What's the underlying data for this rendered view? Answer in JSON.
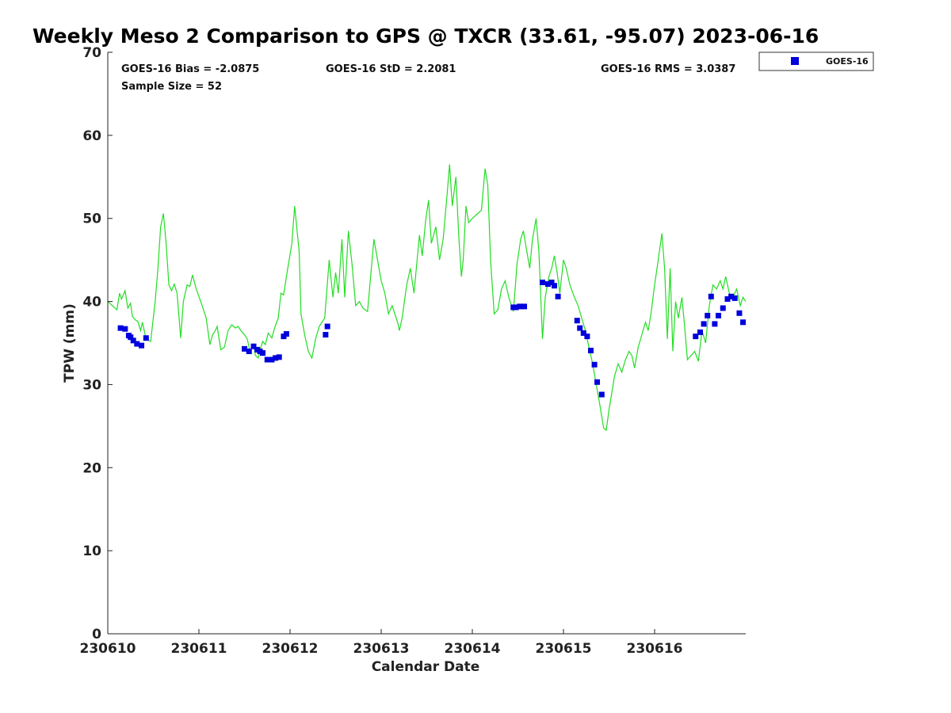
{
  "chart_data": {
    "type": "line",
    "title": "Weekly Meso 2 Comparison to GPS @ TXCR (33.61, -95.07) 2023-06-16",
    "xlabel": "Calendar Date",
    "ylabel": "TPW (mm)",
    "xlim": [
      0,
      7
    ],
    "ylim": [
      0,
      70
    ],
    "yticks": [
      0,
      10,
      20,
      30,
      40,
      50,
      60,
      70
    ],
    "xticks": [
      {
        "value": 0,
        "label": "230610"
      },
      {
        "value": 1,
        "label": "230611"
      },
      {
        "value": 2,
        "label": "230612"
      },
      {
        "value": 3,
        "label": "230613"
      },
      {
        "value": 4,
        "label": "230614"
      },
      {
        "value": 5,
        "label": "230615"
      },
      {
        "value": 6,
        "label": "230616"
      }
    ],
    "stats": {
      "bias": "GOES-16 Bias = -2.0875",
      "std": "GOES-16 StD = 2.2081",
      "rms": "GOES-16 RMS = 3.0387",
      "sample": "Sample Size = 52"
    },
    "legend": {
      "position": "outside-top-right",
      "entries": [
        "GOES-16"
      ]
    },
    "colors": {
      "gps_line": "#22dd22",
      "goes_marker": "#0000dd"
    },
    "series": [
      {
        "kind": "line",
        "points": [
          [
            0.0,
            40.0
          ],
          [
            0.05,
            39.5
          ],
          [
            0.1,
            39.0
          ],
          [
            0.13,
            41.0
          ],
          [
            0.15,
            40.3
          ],
          [
            0.19,
            41.3
          ],
          [
            0.22,
            39.2
          ],
          [
            0.25,
            39.8
          ],
          [
            0.27,
            38.2
          ],
          [
            0.3,
            37.8
          ],
          [
            0.33,
            37.6
          ],
          [
            0.36,
            36.5
          ],
          [
            0.38,
            37.5
          ],
          [
            0.42,
            35.5
          ],
          [
            0.47,
            35.2
          ],
          [
            0.52,
            40.0
          ],
          [
            0.55,
            44.0
          ],
          [
            0.58,
            49.0
          ],
          [
            0.61,
            50.6
          ],
          [
            0.64,
            47.0
          ],
          [
            0.67,
            42.0
          ],
          [
            0.7,
            41.3
          ],
          [
            0.73,
            42.1
          ],
          [
            0.76,
            41.0
          ],
          [
            0.8,
            35.6
          ],
          [
            0.83,
            40.0
          ],
          [
            0.87,
            42.0
          ],
          [
            0.9,
            41.8
          ],
          [
            0.93,
            43.2
          ],
          [
            0.97,
            41.5
          ],
          [
            1.02,
            40.0
          ],
          [
            1.08,
            38.0
          ],
          [
            1.12,
            34.8
          ],
          [
            1.15,
            36.0
          ],
          [
            1.18,
            36.5
          ],
          [
            1.2,
            37.0
          ],
          [
            1.24,
            34.2
          ],
          [
            1.28,
            34.5
          ],
          [
            1.32,
            36.5
          ],
          [
            1.36,
            37.2
          ],
          [
            1.4,
            36.8
          ],
          [
            1.43,
            37.0
          ],
          [
            1.46,
            36.5
          ],
          [
            1.5,
            36.0
          ],
          [
            1.53,
            35.5
          ],
          [
            1.56,
            34.0
          ],
          [
            1.6,
            34.8
          ],
          [
            1.62,
            33.5
          ],
          [
            1.65,
            33.2
          ],
          [
            1.68,
            34.5
          ],
          [
            1.7,
            35.2
          ],
          [
            1.73,
            34.8
          ],
          [
            1.76,
            36.2
          ],
          [
            1.8,
            35.6
          ],
          [
            1.83,
            36.8
          ],
          [
            1.87,
            38.0
          ],
          [
            1.9,
            41.0
          ],
          [
            1.93,
            40.8
          ],
          [
            1.96,
            43.0
          ],
          [
            1.99,
            45.0
          ],
          [
            2.02,
            47.0
          ],
          [
            2.05,
            51.5
          ],
          [
            2.1,
            46.0
          ],
          [
            2.12,
            38.5
          ],
          [
            2.16,
            36.0
          ],
          [
            2.2,
            34.0
          ],
          [
            2.24,
            33.2
          ],
          [
            2.28,
            35.5
          ],
          [
            2.32,
            37.0
          ],
          [
            2.38,
            38.0
          ],
          [
            2.43,
            45.0
          ],
          [
            2.47,
            40.5
          ],
          [
            2.5,
            43.5
          ],
          [
            2.53,
            41.0
          ],
          [
            2.57,
            47.5
          ],
          [
            2.6,
            40.5
          ],
          [
            2.64,
            48.5
          ],
          [
            2.68,
            44.5
          ],
          [
            2.72,
            39.5
          ],
          [
            2.76,
            40.0
          ],
          [
            2.8,
            39.2
          ],
          [
            2.85,
            38.8
          ],
          [
            2.88,
            42.5
          ],
          [
            2.92,
            47.5
          ],
          [
            2.96,
            45.0
          ],
          [
            3.0,
            42.5
          ],
          [
            3.04,
            41.0
          ],
          [
            3.08,
            38.5
          ],
          [
            3.12,
            39.5
          ],
          [
            3.18,
            37.5
          ],
          [
            3.2,
            36.5
          ],
          [
            3.23,
            38.0
          ],
          [
            3.28,
            42.0
          ],
          [
            3.32,
            44.0
          ],
          [
            3.36,
            41.0
          ],
          [
            3.42,
            48.0
          ],
          [
            3.45,
            45.5
          ],
          [
            3.49,
            50.0
          ],
          [
            3.52,
            52.2
          ],
          [
            3.55,
            47.0
          ],
          [
            3.6,
            49.0
          ],
          [
            3.64,
            45.0
          ],
          [
            3.68,
            47.5
          ],
          [
            3.72,
            52.5
          ],
          [
            3.75,
            56.5
          ],
          [
            3.78,
            51.5
          ],
          [
            3.82,
            55.0
          ],
          [
            3.85,
            48.0
          ],
          [
            3.88,
            43.0
          ],
          [
            3.9,
            45.0
          ],
          [
            3.93,
            51.5
          ],
          [
            3.96,
            49.5
          ],
          [
            4.0,
            50.0
          ],
          [
            4.05,
            50.5
          ],
          [
            4.1,
            51.0
          ],
          [
            4.14,
            56.0
          ],
          [
            4.17,
            54.0
          ],
          [
            4.2,
            45.0
          ],
          [
            4.24,
            38.5
          ],
          [
            4.28,
            39.0
          ],
          [
            4.32,
            41.5
          ],
          [
            4.36,
            42.5
          ],
          [
            4.4,
            40.5
          ],
          [
            4.45,
            38.8
          ],
          [
            4.49,
            44.5
          ],
          [
            4.53,
            47.5
          ],
          [
            4.56,
            48.5
          ],
          [
            4.59,
            46.5
          ],
          [
            4.63,
            44.0
          ],
          [
            4.66,
            47.5
          ],
          [
            4.7,
            50.0
          ],
          [
            4.73,
            46.0
          ],
          [
            4.77,
            35.5
          ],
          [
            4.8,
            40.5
          ],
          [
            4.84,
            43.0
          ],
          [
            4.87,
            44.0
          ],
          [
            4.9,
            45.5
          ],
          [
            4.93,
            43.5
          ],
          [
            4.96,
            41.0
          ],
          [
            5.0,
            45.0
          ],
          [
            5.03,
            44.0
          ],
          [
            5.07,
            42.0
          ],
          [
            5.12,
            40.5
          ],
          [
            5.16,
            39.5
          ],
          [
            5.2,
            38.0
          ],
          [
            5.24,
            36.5
          ],
          [
            5.28,
            34.5
          ],
          [
            5.32,
            32.5
          ],
          [
            5.36,
            30.0
          ],
          [
            5.4,
            27.5
          ],
          [
            5.44,
            24.8
          ],
          [
            5.47,
            24.5
          ],
          [
            5.5,
            27.0
          ],
          [
            5.53,
            29.0
          ],
          [
            5.56,
            31.0
          ],
          [
            5.6,
            32.5
          ],
          [
            5.64,
            31.5
          ],
          [
            5.68,
            33.0
          ],
          [
            5.72,
            34.0
          ],
          [
            5.75,
            33.5
          ],
          [
            5.78,
            32.0
          ],
          [
            5.82,
            34.5
          ],
          [
            5.86,
            36.0
          ],
          [
            5.9,
            37.5
          ],
          [
            5.93,
            36.5
          ],
          [
            5.96,
            38.5
          ],
          [
            6.0,
            42.0
          ],
          [
            6.04,
            45.0
          ],
          [
            6.08,
            48.2
          ],
          [
            6.11,
            44.0
          ],
          [
            6.14,
            35.5
          ],
          [
            6.17,
            44.0
          ],
          [
            6.2,
            34.0
          ],
          [
            6.23,
            40.0
          ],
          [
            6.26,
            38.0
          ],
          [
            6.3,
            40.5
          ],
          [
            6.33,
            37.0
          ],
          [
            6.36,
            33.0
          ],
          [
            6.4,
            33.5
          ],
          [
            6.44,
            34.0
          ],
          [
            6.48,
            32.8
          ],
          [
            6.52,
            36.5
          ],
          [
            6.56,
            35.0
          ],
          [
            6.6,
            39.5
          ],
          [
            6.64,
            42.0
          ],
          [
            6.68,
            41.5
          ],
          [
            6.72,
            42.5
          ],
          [
            6.75,
            41.5
          ],
          [
            6.78,
            43.0
          ],
          [
            6.82,
            41.0
          ],
          [
            6.86,
            40.5
          ],
          [
            6.9,
            41.5
          ],
          [
            6.94,
            39.5
          ],
          [
            6.97,
            40.5
          ],
          [
            7.0,
            40.0
          ]
        ]
      },
      {
        "kind": "marker",
        "name": "GOES-16",
        "points": [
          [
            0.14,
            36.8
          ],
          [
            0.19,
            36.7
          ],
          [
            0.23,
            35.9
          ],
          [
            0.25,
            35.7
          ],
          [
            0.28,
            35.3
          ],
          [
            0.32,
            34.9
          ],
          [
            0.37,
            34.7
          ],
          [
            0.42,
            35.6
          ],
          [
            1.5,
            34.3
          ],
          [
            1.55,
            34.0
          ],
          [
            1.6,
            34.6
          ],
          [
            1.64,
            34.2
          ],
          [
            1.67,
            34.0
          ],
          [
            1.7,
            33.8
          ],
          [
            1.75,
            33.0
          ],
          [
            1.8,
            33.0
          ],
          [
            1.84,
            33.2
          ],
          [
            1.88,
            33.3
          ],
          [
            1.93,
            35.8
          ],
          [
            1.96,
            36.1
          ],
          [
            2.39,
            36.0
          ],
          [
            2.41,
            37.0
          ],
          [
            4.45,
            39.3
          ],
          [
            4.48,
            39.3
          ],
          [
            4.52,
            39.4
          ],
          [
            4.57,
            39.4
          ],
          [
            4.77,
            42.3
          ],
          [
            4.83,
            42.1
          ],
          [
            4.87,
            42.3
          ],
          [
            4.9,
            41.9
          ],
          [
            4.94,
            40.6
          ],
          [
            5.15,
            37.7
          ],
          [
            5.18,
            36.8
          ],
          [
            5.22,
            36.2
          ],
          [
            5.26,
            35.8
          ],
          [
            5.3,
            34.1
          ],
          [
            5.34,
            32.4
          ],
          [
            5.37,
            30.3
          ],
          [
            5.42,
            28.8
          ],
          [
            6.45,
            35.8
          ],
          [
            6.5,
            36.3
          ],
          [
            6.54,
            37.3
          ],
          [
            6.58,
            38.3
          ],
          [
            6.62,
            40.6
          ],
          [
            6.66,
            37.3
          ],
          [
            6.7,
            38.3
          ],
          [
            6.75,
            39.2
          ],
          [
            6.8,
            40.3
          ],
          [
            6.84,
            40.6
          ],
          [
            6.88,
            40.4
          ],
          [
            6.93,
            38.6
          ],
          [
            6.97,
            37.5
          ]
        ]
      }
    ]
  }
}
